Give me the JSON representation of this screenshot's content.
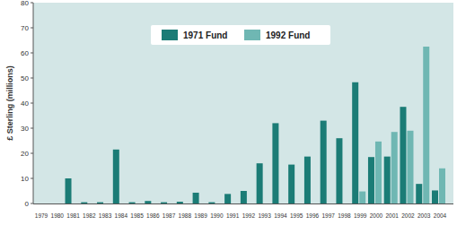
{
  "chart_data": {
    "type": "bar",
    "y_label": "£ Sterling (millions)",
    "categories": [
      "1979",
      "1980",
      "1981",
      "1982",
      "1983",
      "1984",
      "1985",
      "1986",
      "1987",
      "1988",
      "1989",
      "1990",
      "1991",
      "1992",
      "1993",
      "1994",
      "1995",
      "1996",
      "1997",
      "1998",
      "1999",
      "2000",
      "2001",
      "2002",
      "2003",
      "2004"
    ],
    "series": [
      {
        "name": "1971 Fund",
        "color": "#1b7c76",
        "values": [
          0,
          0,
          10,
          0.5,
          0.5,
          21.5,
          0.5,
          1,
          0.5,
          0.7,
          4.3,
          0.5,
          3.8,
          5,
          16,
          32,
          15.5,
          18.7,
          33,
          26,
          48.3,
          18.5,
          18.7,
          38.5,
          7.8,
          5.2
        ]
      },
      {
        "name": "1992 Fund",
        "color": "#6fb7b3",
        "values": [
          null,
          null,
          null,
          null,
          null,
          null,
          null,
          null,
          null,
          null,
          null,
          null,
          null,
          null,
          null,
          null,
          null,
          null,
          null,
          null,
          4.8,
          24.7,
          28.5,
          29,
          62.5,
          14
        ]
      }
    ],
    "ylim": [
      0,
      80
    ],
    "yticks": [
      0,
      10,
      20,
      30,
      40,
      50,
      60,
      70,
      80
    ],
    "grid": false,
    "legend": "top"
  }
}
